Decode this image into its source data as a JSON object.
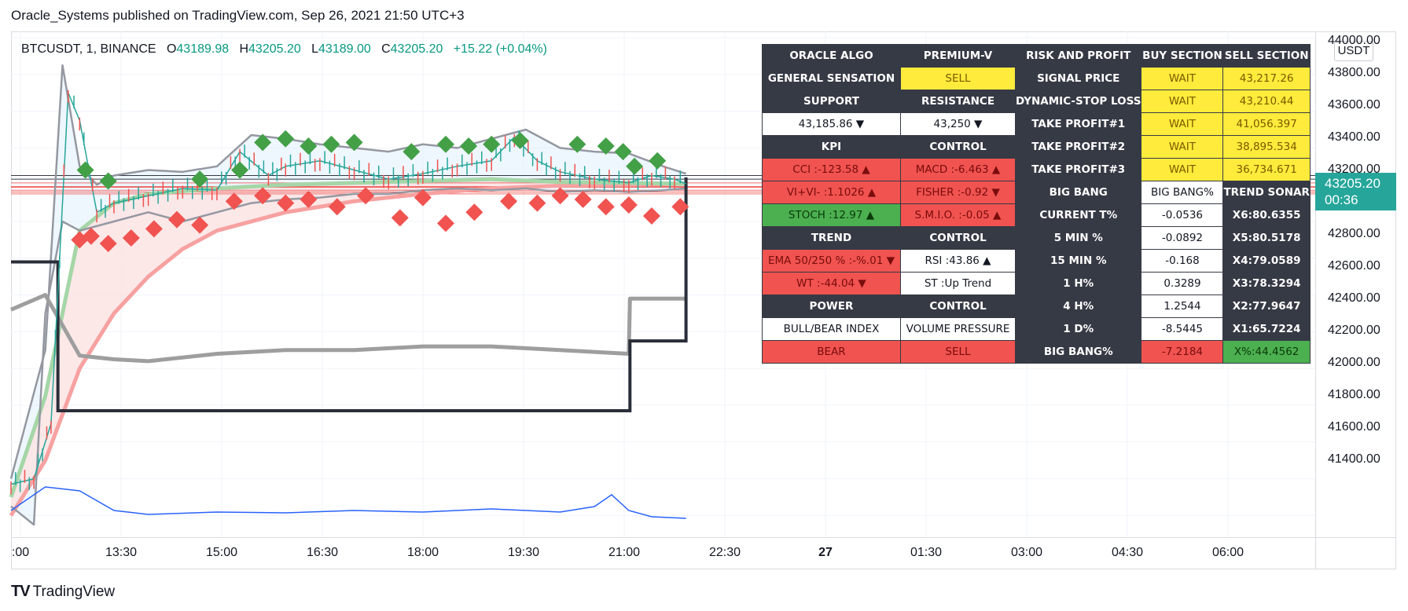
{
  "header": {
    "publisher_line": "Oracle_Systems published on TradingView.com, Sep 26, 2021 21:50 UTC+3"
  },
  "legend": {
    "symbol": "BTCUSDT, 1, BINANCE",
    "open_label": "O",
    "open": "43189.98",
    "high_label": "H",
    "high": "43205.20",
    "low_label": "L",
    "low": "43189.00",
    "close_label": "C",
    "close": "43205.20",
    "change": "+15.22 (+0.04%)"
  },
  "price_axis": {
    "currency": "USDT",
    "last_price": "43205.20",
    "countdown": "00:36",
    "ticks": [
      "44000.00",
      "43800.00",
      "43600.00",
      "43400.00",
      "43200.00",
      "43000.00",
      "42800.00",
      "42600.00",
      "42400.00",
      "42200.00",
      "42000.00",
      "41800.00",
      "41600.00",
      "41400.00"
    ]
  },
  "time_axis": {
    "ticks": [
      ":00",
      "13:30",
      "15:00",
      "16:30",
      "18:00",
      "19:30",
      "21:00",
      "22:30",
      "27",
      "01:30",
      "03:00",
      "04:30",
      "06:00"
    ],
    "bold_tick": "27"
  },
  "colors": {
    "up": "#26a69a",
    "down": "#ef5350",
    "bull_marker": "#43a047",
    "bear_marker": "#f05350",
    "table_dark": "#363a45",
    "highlight_yellow": "#ffeb3b",
    "volume_line": "#2962ff"
  },
  "table": {
    "rows": [
      [
        {
          "t": "ORACLE ALGO",
          "c": "dark"
        },
        {
          "t": "PREMIUM-V",
          "c": "dark"
        },
        {
          "t": "RISK AND PROFIT",
          "c": "dark"
        },
        {
          "t": "BUY SECTION",
          "c": "dark"
        },
        {
          "t": "SELL SECTION",
          "c": "dark"
        }
      ],
      [
        {
          "t": "GENERAL SENSATION",
          "c": "dark"
        },
        {
          "t": "SELL",
          "c": "yellow"
        },
        {
          "t": "SIGNAL PRICE",
          "c": "dark"
        },
        {
          "t": "WAIT",
          "c": "yellow"
        },
        {
          "t": "43,217.26",
          "c": "yellow"
        }
      ],
      [
        {
          "t": "SUPPORT",
          "c": "dark"
        },
        {
          "t": "RESISTANCE",
          "c": "dark"
        },
        {
          "t": "DYNAMIC-STOP LOSS",
          "c": "dark"
        },
        {
          "t": "WAIT",
          "c": "yellow"
        },
        {
          "t": "43,210.44",
          "c": "yellow"
        }
      ],
      [
        {
          "t": "43,185.86 ▼",
          "c": "white"
        },
        {
          "t": "43,250 ▼",
          "c": "white"
        },
        {
          "t": "TAKE PROFIT#1",
          "c": "dark"
        },
        {
          "t": "WAIT",
          "c": "yellow"
        },
        {
          "t": "41,056.397",
          "c": "yellow"
        }
      ],
      [
        {
          "t": "KPI",
          "c": "dark"
        },
        {
          "t": "CONTROL",
          "c": "dark"
        },
        {
          "t": "TAKE PROFIT#2",
          "c": "dark"
        },
        {
          "t": "WAIT",
          "c": "yellow"
        },
        {
          "t": "38,895.534",
          "c": "yellow"
        }
      ],
      [
        {
          "t": "CCI :-123.58 ▲",
          "c": "red"
        },
        {
          "t": "MACD :-6.463 ▲",
          "c": "red"
        },
        {
          "t": "TAKE PROFIT#3",
          "c": "dark"
        },
        {
          "t": "WAIT",
          "c": "yellow"
        },
        {
          "t": "36,734.671",
          "c": "yellow"
        }
      ],
      [
        {
          "t": "VI+VI- :1.1026 ▲",
          "c": "red"
        },
        {
          "t": "FISHER :-0.92 ▼",
          "c": "red"
        },
        {
          "t": "BIG BANG",
          "c": "dark"
        },
        {
          "t": "BIG BANG%",
          "c": "white"
        },
        {
          "t": "TREND SONAR",
          "c": "dark"
        }
      ],
      [
        {
          "t": "STOCH :12.97 ▲",
          "c": "green"
        },
        {
          "t": "S.M.I.O. :-0.05 ▲",
          "c": "red"
        },
        {
          "t": "CURRENT T%",
          "c": "dark"
        },
        {
          "t": "-0.0536",
          "c": "white"
        },
        {
          "t": "X6:80.6355",
          "c": "dark"
        }
      ],
      [
        {
          "t": "TREND",
          "c": "dark"
        },
        {
          "t": "CONTROL",
          "c": "dark"
        },
        {
          "t": "5 MIN %",
          "c": "dark"
        },
        {
          "t": "-0.0892",
          "c": "white"
        },
        {
          "t": "X5:80.5178",
          "c": "dark"
        }
      ],
      [
        {
          "t": "EMA 50/250 % :-%.01 ▼",
          "c": "red"
        },
        {
          "t": "RSI :43.86 ▲",
          "c": "white"
        },
        {
          "t": "15 MIN %",
          "c": "dark"
        },
        {
          "t": "-0.168",
          "c": "white"
        },
        {
          "t": "X4:79.0589",
          "c": "dark"
        }
      ],
      [
        {
          "t": "WT :-44.04 ▼",
          "c": "red"
        },
        {
          "t": "ST :Up Trend",
          "c": "white"
        },
        {
          "t": "1 H%",
          "c": "dark"
        },
        {
          "t": "0.3289",
          "c": "white"
        },
        {
          "t": "X3:78.3294",
          "c": "dark"
        }
      ],
      [
        {
          "t": "POWER",
          "c": "dark"
        },
        {
          "t": "CONTROL",
          "c": "dark"
        },
        {
          "t": "4 H%",
          "c": "dark"
        },
        {
          "t": "1.2544",
          "c": "white"
        },
        {
          "t": "X2:77.9647",
          "c": "dark"
        }
      ],
      [
        {
          "t": "BULL/BEAR INDEX",
          "c": "white"
        },
        {
          "t": "VOLUME PRESSURE",
          "c": "white"
        },
        {
          "t": "1 D%",
          "c": "dark"
        },
        {
          "t": "-8.5445",
          "c": "white"
        },
        {
          "t": "X1:65.7224",
          "c": "dark"
        }
      ],
      [
        {
          "t": "BEAR",
          "c": "red"
        },
        {
          "t": "SELL",
          "c": "red"
        },
        {
          "t": "BIG BANG%",
          "c": "dark"
        },
        {
          "t": "-7.2184",
          "c": "red"
        },
        {
          "t": "X%:44.4562",
          "c": "green"
        }
      ]
    ]
  },
  "brand": {
    "name": "TradingView",
    "logo": "TV"
  },
  "chart_data": {
    "type": "candlestick",
    "symbol": "BTCUSDT",
    "interval": "1",
    "exchange": "BINANCE",
    "ylim": [
      41200,
      44100
    ],
    "x_range": [
      "12:00",
      "07:00"
    ],
    "last_bar_time": "21:50",
    "series": [
      {
        "name": "",
        "kind": "close_path",
        "times": [
          "12:00",
          "12:20",
          "12:35",
          "12:50",
          "13:00",
          "13:15",
          "13:30",
          "14:00",
          "14:30",
          "15:00",
          "15:20",
          "15:45",
          "16:00",
          "16:30",
          "17:00",
          "17:30",
          "18:00",
          "18:30",
          "19:00",
          "19:20",
          "19:40",
          "20:00",
          "20:30",
          "21:00",
          "21:20",
          "21:40",
          "21:50"
        ],
        "values": [
          41570,
          41600,
          41900,
          43700,
          43550,
          43050,
          43100,
          43140,
          43180,
          43170,
          43380,
          43250,
          43300,
          43330,
          43280,
          43230,
          43260,
          43300,
          43330,
          43460,
          43330,
          43270,
          43230,
          43210,
          43250,
          43230,
          43205
        ]
      },
      {
        "name": "",
        "kind": "ema_slow",
        "times": [
          "12:00",
          "12:30",
          "13:00",
          "13:30",
          "14:00",
          "14:30",
          "15:00",
          "16:00",
          "17:00",
          "18:00",
          "19:00",
          "20:00",
          "21:00",
          "21:50"
        ],
        "values": [
          41400,
          41700,
          42200,
          42500,
          42700,
          42850,
          42950,
          43050,
          43110,
          43150,
          43180,
          43195,
          43200,
          43205
        ]
      },
      {
        "name": "",
        "kind": "ema_fast",
        "times": [
          "12:00",
          "12:30",
          "13:00",
          "13:30",
          "14:00",
          "15:00",
          "16:00",
          "17:00",
          "18:00",
          "19:00",
          "20:00",
          "21:00",
          "21:50"
        ],
        "values": [
          41500,
          42050,
          42950,
          43100,
          43150,
          43180,
          43200,
          43210,
          43220,
          43230,
          43215,
          43210,
          43205
        ]
      },
      {
        "name": "",
        "kind": "band_upper",
        "times": [
          "12:00",
          "12:30",
          "12:45",
          "13:00",
          "13:15",
          "13:30",
          "14:00",
          "14:30",
          "15:00",
          "15:30",
          "16:00",
          "16:30",
          "17:00",
          "17:30",
          "18:00",
          "18:30",
          "19:00",
          "19:30",
          "20:00",
          "20:30",
          "21:00",
          "21:30",
          "21:50"
        ],
        "values": [
          41600,
          42300,
          43850,
          43300,
          43200,
          43250,
          43280,
          43270,
          43300,
          43470,
          43450,
          43420,
          43400,
          43380,
          43420,
          43400,
          43450,
          43500,
          43400,
          43380,
          43370,
          43300,
          43260
        ]
      },
      {
        "name": "",
        "kind": "band_lower",
        "times": [
          "12:00",
          "12:20",
          "12:30",
          "12:45",
          "13:00",
          "13:30",
          "14:00",
          "14:30",
          "15:00",
          "15:30",
          "16:00",
          "16:30",
          "17:00",
          "17:30",
          "18:00",
          "18:30",
          "19:00",
          "19:30",
          "20:00",
          "20:30",
          "21:00",
          "21:30",
          "21:50"
        ],
        "values": [
          41450,
          41350,
          42500,
          43000,
          42950,
          43000,
          43050,
          43000,
          43050,
          43100,
          43120,
          43130,
          43150,
          43150,
          43170,
          43180,
          43170,
          43180,
          43160,
          43170,
          43160,
          43170,
          43180
        ]
      },
      {
        "name": "",
        "kind": "step_line",
        "times": [
          "12:00",
          "12:40",
          "12:41",
          "13:00",
          "18:00",
          "21:00",
          "21:01",
          "21:30",
          "21:50"
        ],
        "values": [
          42780,
          42780,
          41970,
          41970,
          41970,
          41970,
          42350,
          42350,
          43240
        ]
      },
      {
        "name": "",
        "kind": "gray_line",
        "times": [
          "12:00",
          "12:30",
          "13:00",
          "13:30",
          "14:00",
          "15:00",
          "16:00",
          "17:00",
          "18:00",
          "19:00",
          "20:00",
          "21:00",
          "21:01",
          "21:50"
        ],
        "values": [
          42520,
          42600,
          42270,
          42250,
          42240,
          42280,
          42300,
          42300,
          42320,
          42320,
          42300,
          42280,
          42580,
          42580
        ]
      }
    ],
    "bull_signal_times": [
      "13:05",
      "13:25",
      "14:45",
      "15:20",
      "15:40",
      "16:00",
      "16:20",
      "16:40",
      "17:00",
      "17:50",
      "18:20",
      "18:40",
      "19:00",
      "19:25",
      "20:15",
      "20:40",
      "20:55",
      "21:05",
      "21:25"
    ],
    "bull_signal_prices": [
      43280,
      43220,
      43230,
      43280,
      43430,
      43450,
      43410,
      43420,
      43430,
      43380,
      43420,
      43410,
      43420,
      43440,
      43420,
      43410,
      43380,
      43300,
      43330
    ],
    "bear_signal_times": [
      "13:00",
      "13:10",
      "13:25",
      "13:45",
      "14:05",
      "14:25",
      "14:45",
      "15:15",
      "15:40",
      "16:00",
      "16:20",
      "16:45",
      "17:10",
      "17:40",
      "18:00",
      "18:20",
      "18:45",
      "19:15",
      "19:40",
      "20:00",
      "20:20",
      "20:40",
      "21:00",
      "21:20",
      "21:45"
    ],
    "bear_signal_prices": [
      42900,
      42920,
      42880,
      42910,
      42960,
      43010,
      42980,
      43110,
      43140,
      43100,
      43120,
      43080,
      43140,
      43020,
      43130,
      42990,
      43050,
      43110,
      43100,
      43140,
      43120,
      43080,
      43090,
      43030,
      43080
    ],
    "horizontal_levels": [
      43250,
      43230,
      43210,
      43190,
      43185.86,
      43170,
      43160,
      43150
    ],
    "volume_trend": {
      "times": [
        "12:00",
        "12:30",
        "13:00",
        "13:30",
        "14:00",
        "15:00",
        "16:00",
        "17:00",
        "18:00",
        "19:00",
        "19:30",
        "20:00",
        "20:30",
        "20:45",
        "21:00",
        "21:20",
        "21:50"
      ],
      "values": [
        30,
        60,
        55,
        30,
        25,
        28,
        27,
        30,
        28,
        32,
        30,
        28,
        35,
        50,
        30,
        22,
        20
      ]
    },
    "grid": true,
    "legend_position": "top-left"
  }
}
